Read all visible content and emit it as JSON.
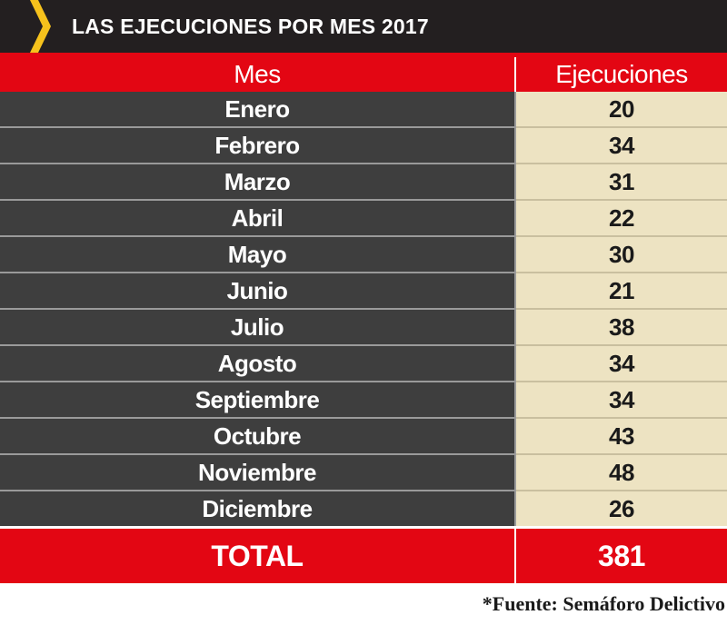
{
  "title": "LAS EJECUCIONES POR MES 2017",
  "accent_color": "#e30613",
  "chevron_color": "#f6c21c",
  "chart_data": {
    "type": "table",
    "columns": [
      "Mes",
      "Ejecuciones"
    ],
    "rows": [
      {
        "month": "Enero",
        "value": "20"
      },
      {
        "month": "Febrero",
        "value": "34"
      },
      {
        "month": "Marzo",
        "value": "31"
      },
      {
        "month": "Abril",
        "value": "22"
      },
      {
        "month": "Mayo",
        "value": "30"
      },
      {
        "month": "Junio",
        "value": "21"
      },
      {
        "month": "Julio",
        "value": "38"
      },
      {
        "month": "Agosto",
        "value": "34"
      },
      {
        "month": "Septiembre",
        "value": "34"
      },
      {
        "month": "Octubre",
        "value": "43"
      },
      {
        "month": "Noviembre",
        "value": "48"
      },
      {
        "month": "Diciembre",
        "value": "26"
      }
    ],
    "total": {
      "label": "TOTAL",
      "value": "381"
    }
  },
  "source": "*Fuente: Semáforo Delictivo"
}
